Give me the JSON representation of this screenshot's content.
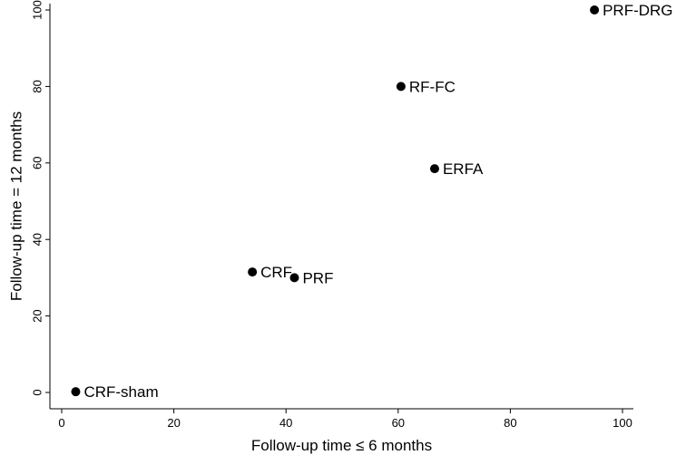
{
  "chart_data": {
    "type": "scatter",
    "title": "",
    "xlabel": "Follow-up time ≤ 6 months",
    "ylabel": "Follow-up time = 12 months",
    "xlim": [
      0,
      100
    ],
    "ylim": [
      0,
      100
    ],
    "xticks": [
      "0",
      "20",
      "40",
      "60",
      "80",
      "100"
    ],
    "yticks": [
      "0",
      "20",
      "40",
      "60",
      "80",
      "100"
    ],
    "grid": false,
    "legend": "none",
    "points": [
      {
        "label": "CRF-sham",
        "x": 2.5,
        "y": 0.2
      },
      {
        "label": "CRF",
        "x": 34,
        "y": 31.5
      },
      {
        "label": "PRF",
        "x": 41.5,
        "y": 30
      },
      {
        "label": "RF-FC",
        "x": 60.5,
        "y": 80
      },
      {
        "label": "ERFA",
        "x": 66.5,
        "y": 58.5
      },
      {
        "label": "PRF-DRG",
        "x": 95,
        "y": 100
      }
    ]
  }
}
